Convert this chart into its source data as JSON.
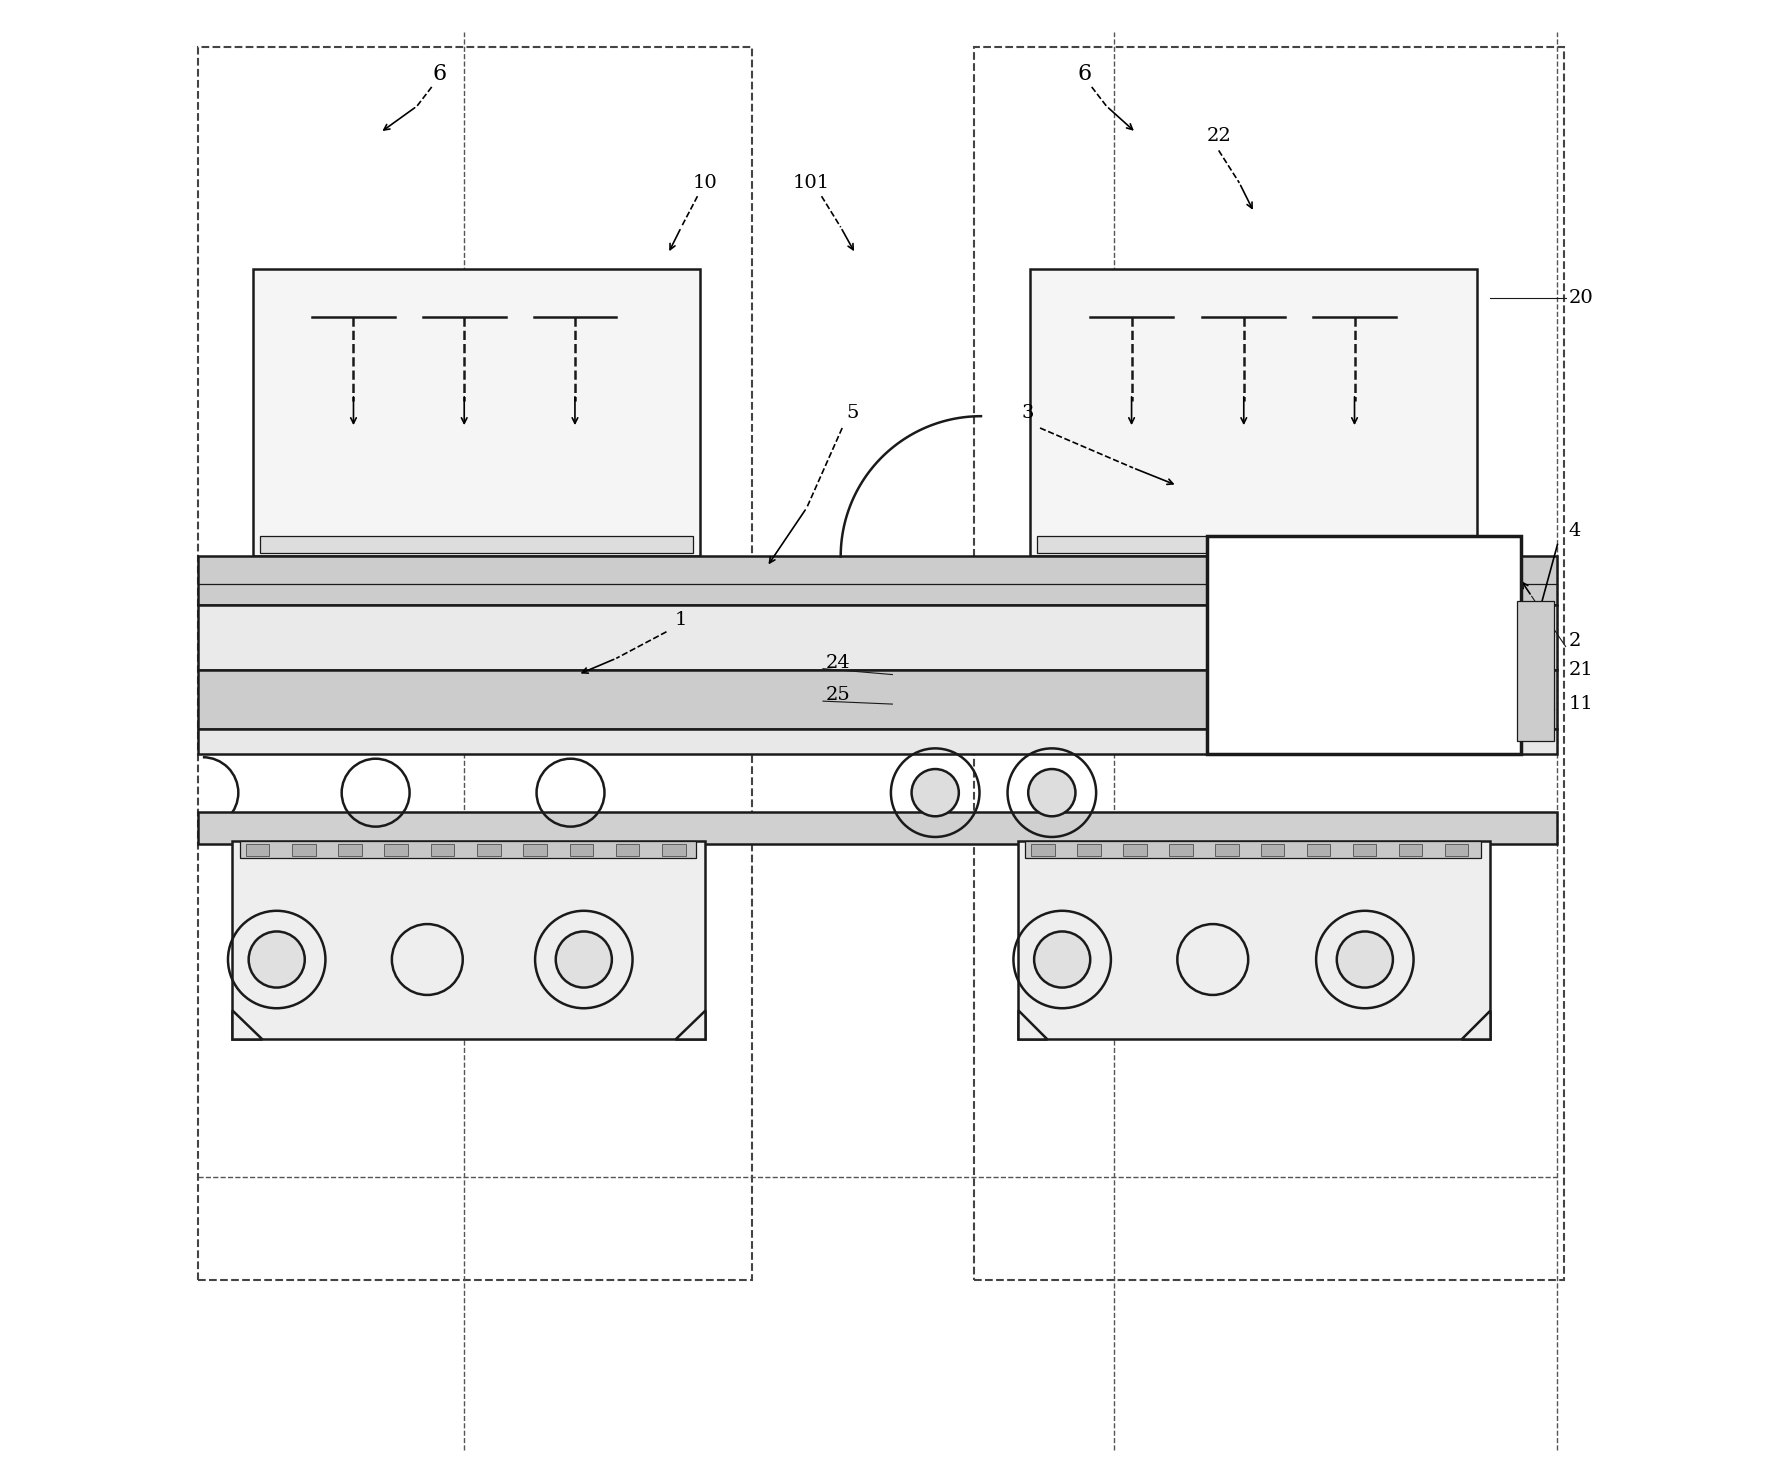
{
  "bg_color": "#ffffff",
  "line_color": "#1a1a1a",
  "figsize": [
    17.7,
    14.82
  ],
  "dpi": 100,
  "label_size": 14
}
